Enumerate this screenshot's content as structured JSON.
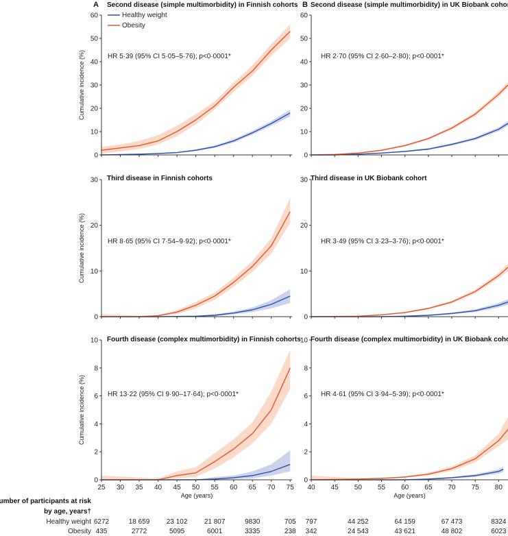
{
  "colors": {
    "healthy": "#2a50a8",
    "healthy_band": "#b9c3e6",
    "obesity": "#e4542c",
    "obesity_band": "#f9cdb8",
    "axis": "#333333"
  },
  "legend": {
    "healthy": "Healthy weight",
    "obesity": "Obesity"
  },
  "column_labels": {
    "A": "A",
    "B": "B"
  },
  "x_axis_label": "Age (years)",
  "y_axis_label": "Cumulative incidence (%)",
  "risk_table": {
    "header_line1": "Number of participants at risk",
    "header_line2": "by age, years†",
    "row_labels": [
      "Healthy weight",
      "Obesity"
    ],
    "finnish": {
      "ages": [
        25,
        35,
        45,
        55,
        65,
        75
      ],
      "healthy": [
        "6272",
        "18 659",
        "23 102",
        "21 807",
        "9830",
        "705"
      ],
      "obesity": [
        "435",
        "2772",
        "5095",
        "6001",
        "3335",
        "238"
      ]
    },
    "uk": {
      "ages": [
        40,
        50,
        60,
        70,
        80
      ],
      "healthy": [
        "797",
        "44 252",
        "64 159",
        "67 473",
        "8324"
      ],
      "obesity": [
        "342",
        "24 543",
        "43 621",
        "48 802",
        "6023"
      ]
    }
  },
  "chart_data": [
    {
      "type": "line",
      "panel": "A",
      "title": "Second disease (simple multimorbidity) in Finnish cohorts",
      "annotation": "HR 5·39 (95% CI 5·05–5·76); p<0·0001*",
      "xlabel": "",
      "ylabel": "Cumulative incidence (%)",
      "xlim": [
        25,
        75.5
      ],
      "ylim": [
        0,
        60
      ],
      "xticks": [
        25,
        30,
        35,
        40,
        45,
        50,
        55,
        60,
        65,
        70,
        75
      ],
      "yticks": [
        0,
        10,
        20,
        30,
        40,
        50,
        60
      ],
      "series": [
        {
          "name": "Healthy weight",
          "x": [
            25,
            35,
            40,
            45,
            50,
            55,
            60,
            65,
            70,
            75
          ],
          "y": [
            0,
            0.3,
            0.6,
            1.0,
            2.0,
            3.5,
            6.0,
            9.5,
            13.5,
            18.0
          ],
          "lower": [
            0,
            0.2,
            0.4,
            0.8,
            1.6,
            3.0,
            5.3,
            8.7,
            12.5,
            16.5
          ],
          "upper": [
            0,
            0.4,
            0.8,
            1.2,
            2.4,
            4.0,
            6.7,
            10.3,
            14.5,
            19.5
          ]
        },
        {
          "name": "Obesity",
          "x": [
            25,
            30,
            35,
            40,
            45,
            50,
            55,
            60,
            65,
            70,
            75
          ],
          "y": [
            2.0,
            3.0,
            4.0,
            6.0,
            10.0,
            15.0,
            21.0,
            29.0,
            36.0,
            45.0,
            53.0
          ],
          "lower": [
            0.5,
            1.5,
            2.5,
            4.5,
            8.0,
            13.0,
            19.5,
            27.0,
            34.0,
            42.5,
            50.0
          ],
          "upper": [
            3.5,
            4.5,
            6.0,
            8.5,
            12.5,
            17.5,
            23.0,
            31.0,
            38.5,
            47.5,
            56.0
          ]
        }
      ]
    },
    {
      "type": "line",
      "panel": "B",
      "title": "Second disease (simple multimorbidity) in UK Biobank cohort",
      "annotation": "HR 2·70 (95% CI 2·60–2·80); p<0·0001*",
      "xlabel": "",
      "ylabel": "",
      "xlim": [
        40,
        82
      ],
      "ylim": [
        0,
        60
      ],
      "xticks": [
        40,
        45,
        50,
        55,
        60,
        65,
        70,
        75,
        80
      ],
      "yticks": [
        0,
        10,
        20,
        30,
        40,
        50,
        60
      ],
      "series": [
        {
          "name": "Healthy weight",
          "x": [
            40,
            45,
            50,
            55,
            60,
            65,
            70,
            75,
            80,
            82
          ],
          "y": [
            0,
            0,
            0.3,
            0.8,
            1.5,
            2.5,
            4.5,
            7.0,
            11.0,
            13.5
          ],
          "lower": [
            0,
            0,
            0.2,
            0.6,
            1.2,
            2.1,
            4.0,
            6.4,
            10.2,
            12.5
          ],
          "upper": [
            0,
            0,
            0.4,
            1.0,
            1.8,
            2.9,
            5.0,
            7.6,
            11.8,
            14.5
          ]
        },
        {
          "name": "Obesity",
          "x": [
            40,
            45,
            50,
            55,
            60,
            65,
            70,
            75,
            80,
            82
          ],
          "y": [
            0,
            0.2,
            0.8,
            2.0,
            4.0,
            7.0,
            11.5,
            17.5,
            26.0,
            30.0
          ],
          "lower": [
            0,
            0.1,
            0.6,
            1.7,
            3.6,
            6.5,
            10.8,
            16.6,
            24.8,
            28.7
          ],
          "upper": [
            0.2,
            0.3,
            1.0,
            2.3,
            4.4,
            7.5,
            12.2,
            18.4,
            27.2,
            31.3
          ]
        }
      ]
    },
    {
      "type": "line",
      "panel": "A",
      "title": "Third disease  in Finnish cohorts",
      "annotation": "HR 8·65 (95% CI 7·54–9·92); p<0·0001*",
      "xlabel": "",
      "ylabel": "Cumulative incidence (%)",
      "xlim": [
        25,
        75.5
      ],
      "ylim": [
        0,
        30
      ],
      "xticks": [
        25,
        30,
        35,
        40,
        45,
        50,
        55,
        60,
        65,
        70,
        75
      ],
      "yticks": [
        0,
        10,
        20,
        30
      ],
      "series": [
        {
          "name": "Healthy weight",
          "x": [
            25,
            40,
            50,
            55,
            60,
            65,
            70,
            75
          ],
          "y": [
            0,
            0,
            0.1,
            0.3,
            0.8,
            1.5,
            2.7,
            4.5
          ],
          "lower": [
            0,
            0,
            0,
            0.1,
            0.5,
            1.0,
            1.8,
            3.0
          ],
          "upper": [
            0,
            0,
            0.2,
            0.5,
            1.1,
            2.0,
            3.6,
            6.0
          ]
        },
        {
          "name": "Obesity",
          "x": [
            25,
            35,
            40,
            45,
            50,
            55,
            60,
            65,
            70,
            75
          ],
          "y": [
            0,
            0,
            0.2,
            1.0,
            2.5,
            4.5,
            7.5,
            11.0,
            15.5,
            23.0
          ],
          "lower": [
            0,
            0,
            0.1,
            0.6,
            1.8,
            3.7,
            6.5,
            9.8,
            13.8,
            20.5
          ],
          "upper": [
            0.6,
            0.2,
            0.4,
            1.4,
            3.2,
            5.3,
            8.5,
            12.2,
            17.2,
            26.0
          ]
        }
      ]
    },
    {
      "type": "line",
      "panel": "B",
      "title": "Third disease in UK Biobank cohort",
      "annotation": "HR 3·49 (95% CI 3·23–3·76); p<0·0001*",
      "xlabel": "",
      "ylabel": "",
      "xlim": [
        40,
        82
      ],
      "ylim": [
        0,
        30
      ],
      "xticks": [
        40,
        45,
        50,
        55,
        60,
        65,
        70,
        75,
        80
      ],
      "yticks": [
        0,
        10,
        20,
        30
      ],
      "series": [
        {
          "name": "Healthy weight",
          "x": [
            40,
            55,
            60,
            65,
            70,
            75,
            80,
            82
          ],
          "y": [
            0,
            0,
            0.1,
            0.3,
            0.7,
            1.3,
            2.5,
            3.2
          ],
          "lower": [
            0,
            0,
            0,
            0.2,
            0.5,
            1.0,
            2.0,
            2.6
          ],
          "upper": [
            0,
            0,
            0.2,
            0.4,
            0.9,
            1.6,
            3.0,
            3.8
          ]
        },
        {
          "name": "Obesity",
          "x": [
            40,
            50,
            55,
            60,
            65,
            70,
            75,
            80,
            82
          ],
          "y": [
            0,
            0.1,
            0.4,
            0.9,
            1.8,
            3.2,
            5.5,
            9.0,
            10.8
          ],
          "lower": [
            0,
            0,
            0.3,
            0.8,
            1.6,
            2.9,
            5.1,
            8.4,
            10.0
          ],
          "upper": [
            0,
            0.2,
            0.5,
            1.0,
            2.0,
            3.5,
            5.9,
            9.6,
            11.6
          ]
        }
      ]
    },
    {
      "type": "line",
      "panel": "A",
      "title": "Fourth disease (complex multimorbidity) in Finnish cohorts",
      "annotation": "HR 13·22 (95% CI 9·90–17·64); p<0·0001*",
      "xlabel": "Age (years)",
      "ylabel": "Cumulative incidence (%)",
      "xlim": [
        25,
        75.5
      ],
      "ylim": [
        0,
        10
      ],
      "xticks": [
        25,
        30,
        35,
        40,
        45,
        50,
        55,
        60,
        65,
        70,
        75
      ],
      "yticks": [
        0,
        2,
        4,
        6,
        8,
        10
      ],
      "series": [
        {
          "name": "Healthy weight",
          "x": [
            25,
            50,
            55,
            60,
            65,
            70,
            75
          ],
          "y": [
            0,
            0,
            0.05,
            0.15,
            0.3,
            0.6,
            1.1
          ],
          "lower": [
            0,
            0,
            0,
            0.05,
            0.1,
            0.3,
            0.6
          ],
          "upper": [
            0,
            0,
            0.2,
            0.3,
            0.6,
            1.1,
            2.1
          ]
        },
        {
          "name": "Obesity",
          "x": [
            25,
            40,
            45,
            50,
            55,
            60,
            65,
            70,
            75
          ],
          "y": [
            0,
            0,
            0.3,
            0.5,
            1.3,
            2.2,
            3.3,
            5.0,
            8.0
          ],
          "lower": [
            0,
            0,
            0.1,
            0.2,
            0.8,
            1.6,
            2.6,
            4.0,
            6.5
          ],
          "upper": [
            0.3,
            0.1,
            0.6,
            0.9,
            1.9,
            2.9,
            4.1,
            6.3,
            9.3
          ]
        }
      ]
    },
    {
      "type": "line",
      "panel": "B",
      "title": "Fourth disease (complex multimorbidity) in UK Biobank cohort",
      "annotation": "HR 4·61 (95% CI 3·94–5·39); p<0·0001*",
      "xlabel": "Age (years)",
      "ylabel": "",
      "xlim": [
        40,
        82
      ],
      "ylim": [
        0,
        10
      ],
      "xticks": [
        40,
        45,
        50,
        55,
        60,
        65,
        70,
        75,
        80
      ],
      "yticks": [
        0,
        2,
        4,
        6,
        8,
        10
      ],
      "series": [
        {
          "name": "Healthy weight",
          "x": [
            40,
            60,
            65,
            70,
            75,
            80,
            81
          ],
          "y": [
            0,
            0,
            0.05,
            0.15,
            0.3,
            0.6,
            0.75
          ],
          "lower": [
            0,
            0,
            0,
            0.1,
            0.2,
            0.45,
            0.55
          ],
          "upper": [
            0,
            0,
            0.1,
            0.2,
            0.4,
            0.75,
            0.95
          ]
        },
        {
          "name": "Obesity",
          "x": [
            40,
            50,
            55,
            60,
            65,
            70,
            75,
            80,
            82
          ],
          "y": [
            0,
            0.05,
            0.1,
            0.2,
            0.4,
            0.8,
            1.5,
            2.8,
            3.6
          ],
          "lower": [
            0,
            0,
            0.05,
            0.15,
            0.3,
            0.65,
            1.25,
            2.4,
            2.9
          ],
          "upper": [
            0.3,
            0.1,
            0.15,
            0.25,
            0.5,
            0.95,
            1.75,
            3.3,
            4.5
          ]
        }
      ]
    }
  ]
}
